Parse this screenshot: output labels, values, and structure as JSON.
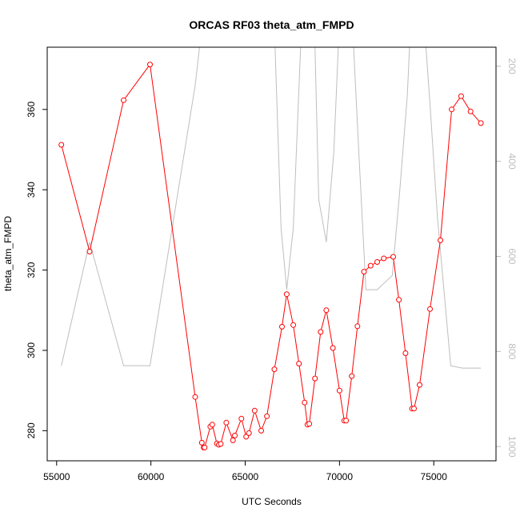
{
  "chart_data": {
    "type": "line",
    "title": "ORCAS RF03 theta_atm_FMPD",
    "xlabel": "UTC Seconds",
    "ylabel": "theta_atm_FMPD",
    "xlim": [
      54500,
      78300
    ],
    "ylim": [
      272.5,
      375.5
    ],
    "x_ticks": [
      55000,
      60000,
      65000,
      70000,
      75000
    ],
    "y_ticks": [
      280,
      300,
      320,
      340,
      360
    ],
    "y2_ticks": [
      200,
      400,
      600,
      800,
      1000
    ],
    "y2lim_top_to_bottom": [
      160,
      1030
    ],
    "y2_reversed": true,
    "grid": false,
    "colors": {
      "theta_series": "#ff0000",
      "pressure_series": "#bebebe",
      "axes": "#000000",
      "right_axis": "#bdbdbd"
    },
    "series": [
      {
        "role": "theta_atm_FMPD",
        "axis": "left",
        "marker": "open-circle",
        "x": [
          55250,
          56750,
          58550,
          59950,
          62350,
          62700,
          62800,
          62850,
          63150,
          63250,
          63500,
          63600,
          63700,
          64000,
          64350,
          64450,
          64800,
          65050,
          65200,
          65500,
          65850,
          66150,
          66550,
          66950,
          67200,
          67550,
          67850,
          68150,
          68300,
          68400,
          68700,
          69000,
          69300,
          69650,
          70000,
          70250,
          70350,
          70650,
          70950,
          71300,
          71650,
          72000,
          72350,
          72850,
          73150,
          73500,
          73850,
          73950,
          74250,
          74800,
          75350,
          75950,
          76450,
          76950,
          77500
        ],
        "y": [
          351.2,
          324.6,
          362.3,
          371.2,
          288.4,
          277.0,
          275.8,
          275.8,
          281.0,
          281.5,
          276.8,
          276.5,
          276.7,
          282.0,
          277.6,
          278.8,
          283.0,
          278.5,
          279.4,
          285.0,
          280.0,
          283.6,
          295.3,
          305.9,
          314.0,
          306.3,
          296.7,
          287.0,
          281.5,
          281.7,
          293.0,
          304.6,
          310.0,
          300.6,
          290.0,
          282.5,
          282.5,
          293.6,
          306.0,
          319.6,
          321.1,
          322.0,
          322.9,
          323.3,
          312.6,
          299.3,
          285.5,
          285.5,
          291.4,
          310.3,
          327.4,
          360.0,
          363.3,
          359.5,
          356.6
        ]
      },
      {
        "role": "pressure",
        "axis": "right",
        "marker": "none",
        "x": [
          55250,
          56750,
          58550,
          59950,
          62350,
          62750,
          63300,
          63550,
          63850,
          64000,
          64300,
          64700,
          65000,
          65200,
          65500,
          65600,
          66000,
          66450,
          66900,
          67200,
          67550,
          68000,
          68200,
          68600,
          68900,
          69300,
          69700,
          70000,
          70150,
          70550,
          71000,
          71400,
          72000,
          72800,
          73200,
          73600,
          73900,
          74300,
          74800,
          75200,
          75900,
          76500,
          77500
        ],
        "y": [
          830,
          570,
          830,
          830,
          240,
          100,
          105,
          0,
          0,
          110,
          0,
          0,
          100,
          0,
          0,
          110,
          0,
          0,
          540,
          670,
          540,
          100,
          0,
          0,
          480,
          570,
          380,
          100,
          0,
          0,
          360,
          670,
          670,
          640,
          460,
          260,
          0,
          0,
          280,
          520,
          830,
          835,
          835
        ]
      }
    ]
  }
}
